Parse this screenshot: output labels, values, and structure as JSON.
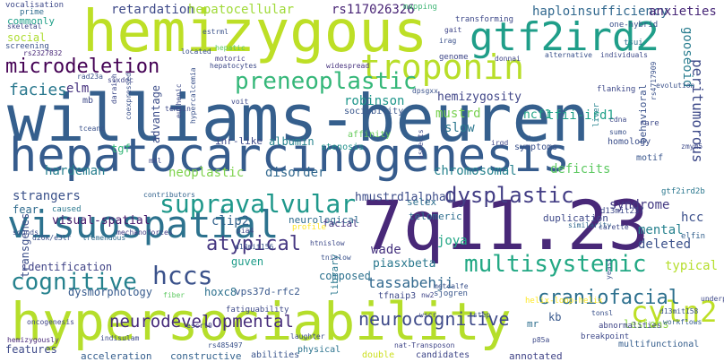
{
  "words": [
    {
      "text": "williams-beuren",
      "weight": 1.0,
      "color": "#355f8d"
    },
    {
      "text": "hepatocarcinogenesis",
      "weight": 0.62,
      "color": "#365c8d"
    },
    {
      "text": "hypersociability",
      "weight": 0.66,
      "color": "#b5de2b"
    },
    {
      "text": "hemizygous",
      "weight": 0.7,
      "color": "#bddf26"
    },
    {
      "text": "7q11.23",
      "weight": 0.74,
      "color": "#482878"
    },
    {
      "text": "visuospatial",
      "weight": 0.5,
      "color": "#2c728e"
    },
    {
      "text": "gtf2ird2",
      "weight": 0.42,
      "color": "#1f9e89"
    },
    {
      "text": "troponin",
      "weight": 0.38,
      "color": "#b8de29"
    },
    {
      "text": "microdeletion",
      "weight": 0.3,
      "color": "#440154"
    },
    {
      "text": "preneoplastic",
      "weight": 0.28,
      "color": "#35b779"
    },
    {
      "text": "supravalvular",
      "weight": 0.3,
      "color": "#1f988b"
    },
    {
      "text": "dysplastic",
      "weight": 0.26,
      "color": "#433e85"
    },
    {
      "text": "cognitive",
      "weight": 0.26,
      "color": "#26828e"
    },
    {
      "text": "hccs",
      "weight": 0.27,
      "color": "#3b528b"
    },
    {
      "text": "multisystemic",
      "weight": 0.27,
      "color": "#22a884"
    },
    {
      "text": "cyln2",
      "weight": 0.3,
      "color": "#bddf26"
    },
    {
      "text": "neurodevelopmental",
      "weight": 0.2,
      "color": "#472d7b"
    },
    {
      "text": "neurocognitive",
      "weight": 0.2,
      "color": "#3e4a89"
    },
    {
      "text": "craniofacial",
      "weight": 0.22,
      "color": "#2d708e"
    },
    {
      "text": "atypical",
      "weight": 0.22,
      "color": "#453781"
    },
    {
      "text": "tassabehji",
      "weight": 0.18,
      "color": "#31688e"
    },
    {
      "text": "facies",
      "weight": 0.18,
      "color": "#2a788e"
    },
    {
      "text": "haploinsufficiency",
      "weight": 0.16,
      "color": "#31688e"
    },
    {
      "text": "anxieties",
      "weight": 0.14,
      "color": "#482878"
    },
    {
      "text": "retardation",
      "weight": 0.14,
      "color": "#3e4989"
    },
    {
      "text": "hepatocellular",
      "weight": 0.14,
      "color": "#a0da39"
    },
    {
      "text": "rs117026326",
      "weight": 0.14,
      "color": "#482475"
    },
    {
      "text": "peritumorous",
      "weight": 0.16,
      "color": "#3e4a89"
    },
    {
      "text": "gooseoid",
      "weight": 0.14,
      "color": "#287c8e"
    },
    {
      "text": "robinson",
      "weight": 0.13,
      "color": "#1f968b"
    },
    {
      "text": "hemizygosity",
      "weight": 0.12,
      "color": "#404688"
    },
    {
      "text": "mustrd",
      "weight": 0.13,
      "color": "#7ad151"
    },
    {
      "text": "tfii-ird1",
      "weight": 0.13,
      "color": "#1fa088"
    },
    {
      "text": "ncf1",
      "weight": 0.12,
      "color": "#20a486"
    },
    {
      "text": "slow",
      "weight": 0.13,
      "color": "#2a768e"
    },
    {
      "text": "elm",
      "weight": 0.12,
      "color": "#46327e"
    },
    {
      "text": "hardeman",
      "weight": 0.13,
      "color": "#277f8e"
    },
    {
      "text": "neoplastic",
      "weight": 0.13,
      "color": "#7fd34e"
    },
    {
      "text": "disorder",
      "weight": 0.13,
      "color": "#31688e"
    },
    {
      "text": "chromosomal",
      "weight": 0.13,
      "color": "#26828e"
    },
    {
      "text": "deficits",
      "weight": 0.13,
      "color": "#5ec962"
    },
    {
      "text": "strangers",
      "weight": 0.13,
      "color": "#3b528b"
    },
    {
      "text": "hmustrd1alpha1",
      "weight": 0.12,
      "color": "#3d4d8a"
    },
    {
      "text": "selex",
      "weight": 0.1,
      "color": "#2e6f8e"
    },
    {
      "text": "syndrome",
      "weight": 0.12,
      "color": "#443a83"
    },
    {
      "text": "visual-spatial",
      "weight": 0.12,
      "color": "#481a6c"
    },
    {
      "text": "clip2",
      "weight": 0.12,
      "color": "#33638d"
    },
    {
      "text": "phenobarbital",
      "weight": 0.1,
      "color": "#375a8c"
    },
    {
      "text": "neurological",
      "weight": 0.1,
      "color": "#2f6c8e"
    },
    {
      "text": "telomeric",
      "weight": 0.09,
      "color": "#2e6e8e"
    },
    {
      "text": "mental",
      "weight": 0.12,
      "color": "#26818e"
    },
    {
      "text": "hcc",
      "weight": 0.12,
      "color": "#3c508b"
    },
    {
      "text": "joya",
      "weight": 0.13,
      "color": "#21a685"
    },
    {
      "text": "wade",
      "weight": 0.13,
      "color": "#46337f"
    },
    {
      "text": "piasxbeta",
      "weight": 0.12,
      "color": "#2a788e"
    },
    {
      "text": "deleted",
      "weight": 0.12,
      "color": "#3b518b"
    },
    {
      "text": "typical",
      "weight": 0.12,
      "color": "#b5de2b"
    },
    {
      "text": "identification",
      "weight": 0.11,
      "color": "#414487"
    },
    {
      "text": "guven",
      "weight": 0.11,
      "color": "#1e9c89"
    },
    {
      "text": "composed",
      "weight": 0.1,
      "color": "#2c718e"
    },
    {
      "text": "dysmorphology",
      "weight": 0.11,
      "color": "#375b8d"
    },
    {
      "text": "hoxc8",
      "weight": 0.11,
      "color": "#2d718e"
    },
    {
      "text": "vps37d-rfc2",
      "weight": 0.1,
      "color": "#38588c"
    },
    {
      "text": "transgenes",
      "weight": 0.11,
      "color": "#3c4f8a"
    },
    {
      "text": "features",
      "weight": 0.11,
      "color": "#3e4a89"
    },
    {
      "text": "social",
      "weight": 0.11,
      "color": "#addc30"
    },
    {
      "text": "fear",
      "weight": 0.1,
      "color": "#2f6b8e"
    },
    {
      "text": "kb",
      "weight": 0.11,
      "color": "#38588c"
    },
    {
      "text": "mr",
      "weight": 0.1,
      "color": "#2e6f8e"
    },
    {
      "text": "lesions",
      "weight": 0.1,
      "color": "#8ed645"
    },
    {
      "text": "acceleration",
      "weight": 0.09,
      "color": "#355e8d"
    },
    {
      "text": "constructive",
      "weight": 0.09,
      "color": "#33628d"
    },
    {
      "text": "abilities",
      "weight": 0.08,
      "color": "#3a548c"
    },
    {
      "text": "physical",
      "weight": 0.08,
      "color": "#2c738e"
    },
    {
      "text": "candidates",
      "weight": 0.09,
      "color": "#3f4788"
    },
    {
      "text": "double",
      "weight": 0.08,
      "color": "#ccdf1e"
    },
    {
      "text": "annotated",
      "weight": 0.09,
      "color": "#414487"
    },
    {
      "text": "multifunctional",
      "weight": 0.07,
      "color": "#355e8d"
    },
    {
      "text": "advantage",
      "weight": 0.09,
      "color": "#3d4e8a"
    },
    {
      "text": "albumin",
      "weight": 0.09,
      "color": "#25838e"
    },
    {
      "text": "inr-like",
      "weight": 0.09,
      "color": "#3e4a89"
    },
    {
      "text": "sociability",
      "weight": 0.08,
      "color": "#39568c"
    },
    {
      "text": "affinity",
      "weight": 0.08,
      "color": "#67cc5c"
    },
    {
      "text": "stenosis",
      "weight": 0.08,
      "color": "#21918c"
    },
    {
      "text": "symptoms",
      "weight": 0.07,
      "color": "#3b518b"
    },
    {
      "text": "homology",
      "weight": 0.07,
      "color": "#3c4f8a"
    },
    {
      "text": "motif",
      "weight": 0.07,
      "color": "#39568c"
    },
    {
      "text": "behavioral",
      "weight": 0.08,
      "color": "#3b528b"
    },
    {
      "text": "gtf2ird2b",
      "weight": 0.06,
      "color": "#2a778e"
    },
    {
      "text": "elfin",
      "weight": 0.06,
      "color": "#34618d"
    },
    {
      "text": "d13mit237",
      "weight": 0.06,
      "color": "#3e4a89"
    },
    {
      "text": "duplication",
      "weight": 0.08,
      "color": "#3e4989"
    },
    {
      "text": "facial",
      "weight": 0.08,
      "color": "#453581"
    },
    {
      "text": "tgf",
      "weight": 0.08,
      "color": "#35b779"
    },
    {
      "text": "mapping",
      "weight": 0.06,
      "color": "#45b87a"
    },
    {
      "text": "transforming",
      "weight": 0.06,
      "color": "#3e4989"
    },
    {
      "text": "genome",
      "weight": 0.06,
      "color": "#3f4788"
    },
    {
      "text": "commonly",
      "weight": 0.06,
      "color": "#1f9f88"
    },
    {
      "text": "prime",
      "weight": 0.06,
      "color": "#2f6b8e"
    },
    {
      "text": "screening",
      "weight": 0.06,
      "color": "#3b528b"
    },
    {
      "text": "vocalisation",
      "weight": 0.06,
      "color": "#3e4989"
    },
    {
      "text": "skeletal",
      "weight": 0.05,
      "color": "#404688"
    },
    {
      "text": "rs2327832",
      "weight": 0.05,
      "color": "#482878"
    },
    {
      "text": "motoric",
      "weight": 0.05,
      "color": "#433e85"
    },
    {
      "text": "widespread",
      "weight": 0.05,
      "color": "#46327e"
    },
    {
      "text": "library",
      "weight": 0.07,
      "color": "#2a788e"
    },
    {
      "text": "fatiguability",
      "weight": 0.06,
      "color": "#3e4a89"
    },
    {
      "text": "helix-loop-helix",
      "weight": 0.06,
      "color": "#fde725"
    },
    {
      "text": "abnormalities",
      "weight": 0.06,
      "color": "#404688"
    },
    {
      "text": "breakpoint",
      "weight": 0.06,
      "color": "#3e4989"
    },
    {
      "text": "workflows",
      "weight": 0.05,
      "color": "#355e8d"
    },
    {
      "text": "oncogenesis",
      "weight": 0.05,
      "color": "#404688"
    },
    {
      "text": "hemizygously",
      "weight": 0.05,
      "color": "#482878"
    },
    {
      "text": "characteristic",
      "weight": 0.05,
      "color": "#404688"
    },
    {
      "text": "rs485497",
      "weight": 0.05,
      "color": "#3b528b"
    },
    {
      "text": "nat-Transposon",
      "weight": 0.05,
      "color": "#404688"
    },
    {
      "text": "laughter",
      "weight": 0.05,
      "color": "#3d4d8a"
    },
    {
      "text": "mechanoforces",
      "weight": 0.05,
      "color": "#433e85"
    },
    {
      "text": "tremendous",
      "weight": 0.04,
      "color": "#2f6c8e"
    },
    {
      "text": "sounds",
      "weight": 0.05,
      "color": "#3d4e8a"
    },
    {
      "text": "caused",
      "weight": 0.06,
      "color": "#2a788e"
    },
    {
      "text": "contributors",
      "weight": 0.05,
      "color": "#33638d"
    },
    {
      "text": "profile",
      "weight": 0.05,
      "color": "#fde725"
    },
    {
      "text": "similarity",
      "weight": 0.05,
      "color": "#31688e"
    },
    {
      "text": "carette",
      "weight": 0.05,
      "color": "#3e4a89"
    },
    {
      "text": "sjogren",
      "weight": 0.05,
      "color": "#39568c"
    },
    {
      "text": "metcalfe",
      "weight": 0.05,
      "color": "#3b528b"
    },
    {
      "text": "step",
      "weight": 0.05,
      "color": "#3b528b"
    },
    {
      "text": "pia4",
      "weight": 0.05,
      "color": "#404688"
    },
    {
      "text": "tfnaip3",
      "weight": 0.06,
      "color": "#3e4a89"
    },
    {
      "text": "d13mit162",
      "weight": 0.05,
      "color": "#3b528b"
    },
    {
      "text": "escrt0",
      "weight": 0.05,
      "color": "#404688"
    },
    {
      "text": "p85a",
      "weight": 0.05,
      "color": "#3e4a89"
    },
    {
      "text": "tonsl",
      "weight": 0.04,
      "color": "#3b528b"
    },
    {
      "text": "cendr",
      "weight": 0.04,
      "color": "#3e4a89"
    },
    {
      "text": "underpin",
      "weight": 0.04,
      "color": "#3e4989"
    },
    {
      "text": "evolution",
      "weight": 0.04,
      "color": "#3b528b"
    },
    {
      "text": "individuals",
      "weight": 0.04,
      "color": "#3e4a89"
    },
    {
      "text": "alternative",
      "weight": 0.04,
      "color": "#3b528b"
    },
    {
      "text": "one-hybrid",
      "weight": 0.06,
      "color": "#3b528b"
    },
    {
      "text": "tsui",
      "weight": 0.05,
      "color": "#2c718e"
    },
    {
      "text": "gait",
      "weight": 0.05,
      "color": "#404688"
    },
    {
      "text": "irag",
      "weight": 0.05,
      "color": "#3b528b"
    },
    {
      "text": "donnai",
      "weight": 0.04,
      "color": "#404688"
    },
    {
      "text": "flanking",
      "weight": 0.06,
      "color": "#3e4989"
    },
    {
      "text": "rs4717909",
      "weight": 0.05,
      "color": "#3b528b"
    },
    {
      "text": "irgd",
      "weight": 0.05,
      "color": "#404688"
    },
    {
      "text": "aspects",
      "weight": 0.05,
      "color": "#3e4a89"
    },
    {
      "text": "dpsgxx",
      "weight": 0.04,
      "color": "#3b528b"
    },
    {
      "text": "voit",
      "weight": 0.05,
      "color": "#3e4a89"
    },
    {
      "text": "hepatic",
      "weight": 0.05,
      "color": "#5ec962"
    },
    {
      "text": "located",
      "weight": 0.05,
      "color": "#3b528b"
    },
    {
      "text": "hepatocytes",
      "weight": 0.04,
      "color": "#3e4a89"
    },
    {
      "text": "tceanc",
      "weight": 0.05,
      "color": "#3b528b"
    },
    {
      "text": "daraich",
      "weight": 0.05,
      "color": "#3e4a89"
    },
    {
      "text": "sixdoc",
      "weight": 0.04,
      "color": "#404688"
    },
    {
      "text": "rad23a",
      "weight": 0.05,
      "color": "#3b528b"
    },
    {
      "text": "liver",
      "weight": 0.05,
      "color": "#25838e"
    },
    {
      "text": "cdna",
      "weight": 0.05,
      "color": "#3e4a89"
    },
    {
      "text": "sumo",
      "weight": 0.04,
      "color": "#3b528b"
    },
    {
      "text": "rare",
      "weight": 0.05,
      "color": "#3e4a89"
    },
    {
      "text": "yeast",
      "weight": 0.05,
      "color": "#3b528b"
    },
    {
      "text": "zmym5",
      "weight": 0.04,
      "color": "#3e4a89"
    },
    {
      "text": "d13mit156",
      "weight": 0.05,
      "color": "#3b528b"
    },
    {
      "text": "htnislow",
      "weight": 0.04,
      "color": "#3e4a89"
    },
    {
      "text": "tnislow",
      "weight": 0.05,
      "color": "#3b528b"
    },
    {
      "text": "nw2",
      "weight": 0.05,
      "color": "#404688"
    },
    {
      "text": "wscr",
      "weight": 0.05,
      "color": "#3e4a89"
    },
    {
      "text": "wilms",
      "weight": 0.05,
      "color": "#3b528b"
    },
    {
      "text": "guce",
      "weight": 0.04,
      "color": "#3e4a89"
    },
    {
      "text": "d13mit158",
      "weight": 0.04,
      "color": "#3b528b"
    },
    {
      "text": "indisulam",
      "weight": 0.05,
      "color": "#3e4a89"
    },
    {
      "text": "fiber",
      "weight": 0.05,
      "color": "#5ec962"
    },
    {
      "text": "coexpressed",
      "weight": 0.05,
      "color": "#3b528b"
    },
    {
      "text": "tensin",
      "weight": 0.04,
      "color": "#3e4a89"
    },
    {
      "text": "d26k/e3lr",
      "weight": 0.04,
      "color": "#3b528b"
    },
    {
      "text": "mkl",
      "weight": 0.04,
      "color": "#3e4a89"
    },
    {
      "text": "estrml",
      "weight": 0.04,
      "color": "#3b528b"
    },
    {
      "text": "euthenic",
      "weight": 0.04,
      "color": "#3e4a89"
    },
    {
      "text": "hypercalcemia",
      "weight": 0.05,
      "color": "#3b528b"
    },
    {
      "text": "mb",
      "weight": 0.06,
      "color": "#3e4a89"
    }
  ]
}
